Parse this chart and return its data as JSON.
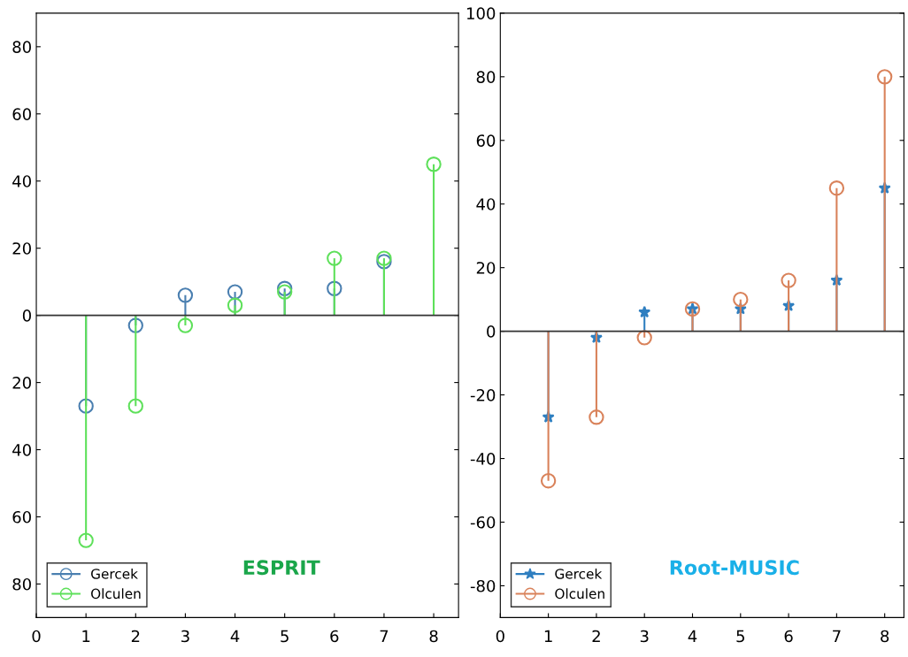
{
  "chart_data": [
    {
      "type": "lollipop",
      "x": [
        1,
        2,
        3,
        4,
        5,
        6,
        7,
        8
      ],
      "xlim": [
        0,
        8.5
      ],
      "xticks": [
        0,
        1,
        2,
        3,
        4,
        5,
        6,
        7,
        8
      ],
      "ylim": [
        -90,
        90
      ],
      "yticks": [
        {
          "value": -80,
          "label": "80"
        },
        {
          "value": -60,
          "label": "60"
        },
        {
          "value": -40,
          "label": "40"
        },
        {
          "value": -20,
          "label": "20"
        },
        0,
        20,
        40,
        60,
        80
      ],
      "series": [
        {
          "name": "Gercek",
          "color": "#4a7fb0",
          "marker": "circle",
          "values": [
            -27,
            -3,
            6,
            7,
            8,
            8,
            16,
            null
          ]
        },
        {
          "name": "Olculen",
          "color": "#5ee05a",
          "marker": "circle",
          "values": [
            -67,
            -27,
            -3,
            3,
            7,
            17,
            17,
            45
          ]
        }
      ],
      "legend": "bottom left",
      "grid": false,
      "ref_lines": [
        {
          "axis": "y",
          "value": 0,
          "color": "#333333"
        }
      ],
      "annotations": [
        "ESPRIT"
      ]
    },
    {
      "type": "lollipop",
      "x": [
        1,
        2,
        3,
        4,
        5,
        6,
        7,
        8
      ],
      "xlim": [
        0,
        8.4
      ],
      "xticks": [
        0,
        1,
        2,
        3,
        4,
        5,
        6,
        7,
        8
      ],
      "ylim": [
        -90,
        100
      ],
      "yticks": [
        -80,
        -60,
        -40,
        -20,
        0,
        20,
        40,
        60,
        80,
        100
      ],
      "series": [
        {
          "name": "Gercek",
          "color": "#2f7fc0",
          "marker": "star",
          "values": [
            -27,
            -2,
            6,
            7,
            7,
            8,
            16,
            45
          ]
        },
        {
          "name": "Olculen",
          "color": "#d9825a",
          "marker": "circle",
          "values": [
            -47,
            -27,
            -2,
            7,
            10,
            16,
            45,
            80
          ]
        }
      ],
      "legend": "bottom left",
      "grid": false,
      "ref_lines": [
        {
          "axis": "y",
          "value": 0,
          "color": "#333333"
        }
      ],
      "annotations": [
        "Root-MUSIC"
      ]
    }
  ]
}
